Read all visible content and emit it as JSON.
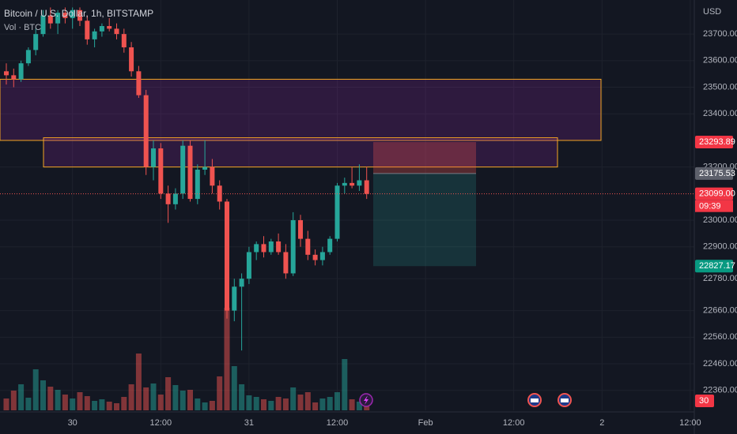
{
  "chart_data": {
    "type": "candlestick",
    "title": "Bitcoin / U.S. Dollar, 1h, BITSTAMP",
    "subtitle": "Vol · BTC",
    "currency": "USD",
    "categories": [
      null,
      null,
      null,
      null,
      null,
      null,
      null,
      null,
      null,
      "30",
      null,
      null,
      null,
      null,
      null,
      null,
      null,
      null,
      null,
      null,
      null,
      "12:00",
      null,
      null,
      null,
      null,
      null,
      null,
      null,
      null,
      null,
      null,
      null,
      "31",
      null,
      null,
      null,
      null,
      null,
      null,
      null,
      null,
      null,
      null,
      null,
      "12:00",
      null,
      null,
      null,
      null,
      null,
      null,
      null,
      null,
      null,
      null,
      null,
      "Feb",
      null,
      null,
      null,
      null,
      null,
      null,
      null,
      null,
      null,
      null,
      null,
      "12:00",
      null,
      null,
      null,
      null,
      null,
      null,
      null,
      null,
      null,
      null,
      null,
      "2",
      null,
      null,
      null,
      null,
      null,
      null,
      null,
      null,
      null,
      null,
      null,
      "12:00"
    ],
    "open": [
      23560,
      23545,
      23530,
      23590,
      23640,
      23700,
      23770,
      23740,
      23780,
      23760,
      23790,
      23750,
      23680,
      23710,
      23730,
      23720,
      23700,
      23650,
      23560,
      23470,
      23200,
      23270,
      23100,
      23060,
      23100,
      23280,
      23080,
      23190,
      23200,
      23130,
      23070,
      22660,
      22750,
      22780,
      22880,
      22910,
      22880,
      22920,
      22880,
      22800,
      23000,
      22930,
      22870,
      22850,
      22880,
      22930,
      23130,
      23140,
      23130,
      23150,
      null,
      null,
      null,
      null,
      null,
      null,
      null,
      null,
      null,
      null,
      null,
      null,
      null,
      null,
      null,
      null,
      null,
      null,
      null,
      null,
      null,
      null,
      null,
      null,
      null,
      null,
      null,
      null,
      null,
      null,
      null,
      null,
      null,
      null,
      null,
      null,
      null,
      null,
      null,
      null,
      null,
      null,
      null,
      null
    ],
    "high": [
      23590,
      23570,
      23600,
      23650,
      23720,
      23790,
      23800,
      23790,
      23800,
      23800,
      23800,
      23770,
      23720,
      23740,
      23760,
      23740,
      23720,
      23670,
      23580,
      23490,
      23300,
      23290,
      23130,
      23120,
      23300,
      23300,
      23210,
      23300,
      23230,
      23150,
      23080,
      22780,
      22800,
      22900,
      22920,
      22940,
      22930,
      22950,
      22910,
      23030,
      23020,
      22960,
      22890,
      22900,
      22940,
      23140,
      23160,
      23200,
      23210,
      23200,
      null,
      null,
      null,
      null,
      null,
      null,
      null,
      null,
      null,
      null,
      null,
      null,
      null,
      null,
      null,
      null,
      null,
      null,
      null,
      null,
      null,
      null,
      null,
      null,
      null,
      null,
      null,
      null,
      null,
      null,
      null,
      null,
      null,
      null,
      null,
      null,
      null,
      null,
      null,
      null,
      null,
      null,
      null,
      null
    ],
    "low": [
      23510,
      23500,
      23520,
      23580,
      23620,
      23690,
      23720,
      23700,
      23740,
      23720,
      23730,
      23660,
      23650,
      23690,
      23710,
      23680,
      23630,
      23540,
      23460,
      23170,
      23150,
      23080,
      22990,
      23040,
      23080,
      23070,
      23060,
      23170,
      23100,
      23040,
      22630,
      22620,
      22510,
      22760,
      22850,
      22860,
      22870,
      22870,
      22780,
      22790,
      22900,
      22850,
      22830,
      22830,
      22870,
      22920,
      23100,
      23120,
      23110,
      23080,
      null,
      null,
      null,
      null,
      null,
      null,
      null,
      null,
      null,
      null,
      null,
      null,
      null,
      null,
      null,
      null,
      null,
      null,
      null,
      null,
      null,
      null,
      null,
      null,
      null,
      null,
      null,
      null,
      null,
      null,
      null,
      null,
      null,
      null,
      null,
      null,
      null,
      null,
      null,
      null,
      null,
      null,
      null,
      null
    ],
    "close": [
      23545,
      23530,
      23590,
      23640,
      23700,
      23770,
      23740,
      23780,
      23760,
      23790,
      23750,
      23680,
      23710,
      23730,
      23720,
      23700,
      23650,
      23560,
      23470,
      23200,
      23270,
      23100,
      23060,
      23100,
      23280,
      23080,
      23190,
      23200,
      23130,
      23070,
      22660,
      22750,
      22780,
      22880,
      22910,
      22880,
      22920,
      22880,
      22800,
      23000,
      22930,
      22870,
      22850,
      22880,
      22930,
      23130,
      23140,
      23130,
      23150,
      23099,
      null,
      null,
      null,
      null,
      null,
      null,
      null,
      null,
      null,
      null,
      null,
      null,
      null,
      null,
      null,
      null,
      null,
      null,
      null,
      null,
      null,
      null,
      null,
      null,
      null,
      null,
      null,
      null,
      null,
      null,
      null,
      null,
      null,
      null,
      null,
      null,
      null,
      null,
      null,
      null,
      null,
      null,
      null,
      null
    ],
    "volume": [
      150,
      250,
      330,
      160,
      520,
      380,
      300,
      260,
      200,
      150,
      230,
      180,
      120,
      140,
      110,
      90,
      170,
      330,
      720,
      290,
      340,
      200,
      420,
      320,
      250,
      260,
      150,
      100,
      120,
      430,
      1300,
      560,
      330,
      190,
      170,
      140,
      120,
      170,
      150,
      290,
      200,
      230,
      100,
      150,
      170,
      230,
      650,
      140,
      110,
      80,
      null,
      null,
      null,
      null,
      null,
      null,
      null,
      null,
      null,
      null,
      null,
      null,
      null,
      null,
      null,
      null,
      null,
      null,
      null,
      null,
      null,
      null,
      null,
      null,
      null,
      null,
      null,
      null,
      null,
      null,
      null,
      null,
      null,
      null,
      null,
      null,
      null,
      null,
      null,
      null,
      null,
      null,
      null,
      null
    ],
    "up_color": "#26a69a",
    "down_color": "#ef5350",
    "ylim": [
      22285,
      23828
    ],
    "yticks": [
      {
        "value": 22360,
        "label": "22360.00"
      },
      {
        "value": 22460,
        "label": "22460.00"
      },
      {
        "value": 22560,
        "label": "22560.00"
      },
      {
        "value": 22660,
        "label": "22660.00"
      },
      {
        "value": 22780,
        "label": "22780.00"
      },
      {
        "value": 22900,
        "label": "22900.00"
      },
      {
        "value": 23000,
        "label": "23000.00"
      },
      {
        "value": 23200,
        "label": "23200.00"
      },
      {
        "value": 23400,
        "label": "23400.00"
      },
      {
        "value": 23500,
        "label": "23500.00"
      },
      {
        "value": 23600,
        "label": "23600.00"
      },
      {
        "value": 23700,
        "label": "23700.00"
      }
    ],
    "grid": true,
    "zones": [
      {
        "top": 23530,
        "bottom": 23300
      },
      {
        "top": 23310,
        "bottom": 23200
      }
    ],
    "position": {
      "stop": {
        "value": 23293.89,
        "label": "23293.89"
      },
      "entry": {
        "value": 23175.53,
        "label": "23175.53"
      },
      "target": {
        "value": 22827.17,
        "label": "22827.17"
      }
    },
    "last_price": {
      "value": 23099,
      "label": "23099.00",
      "countdown": "09:39"
    },
    "badge": "30"
  }
}
